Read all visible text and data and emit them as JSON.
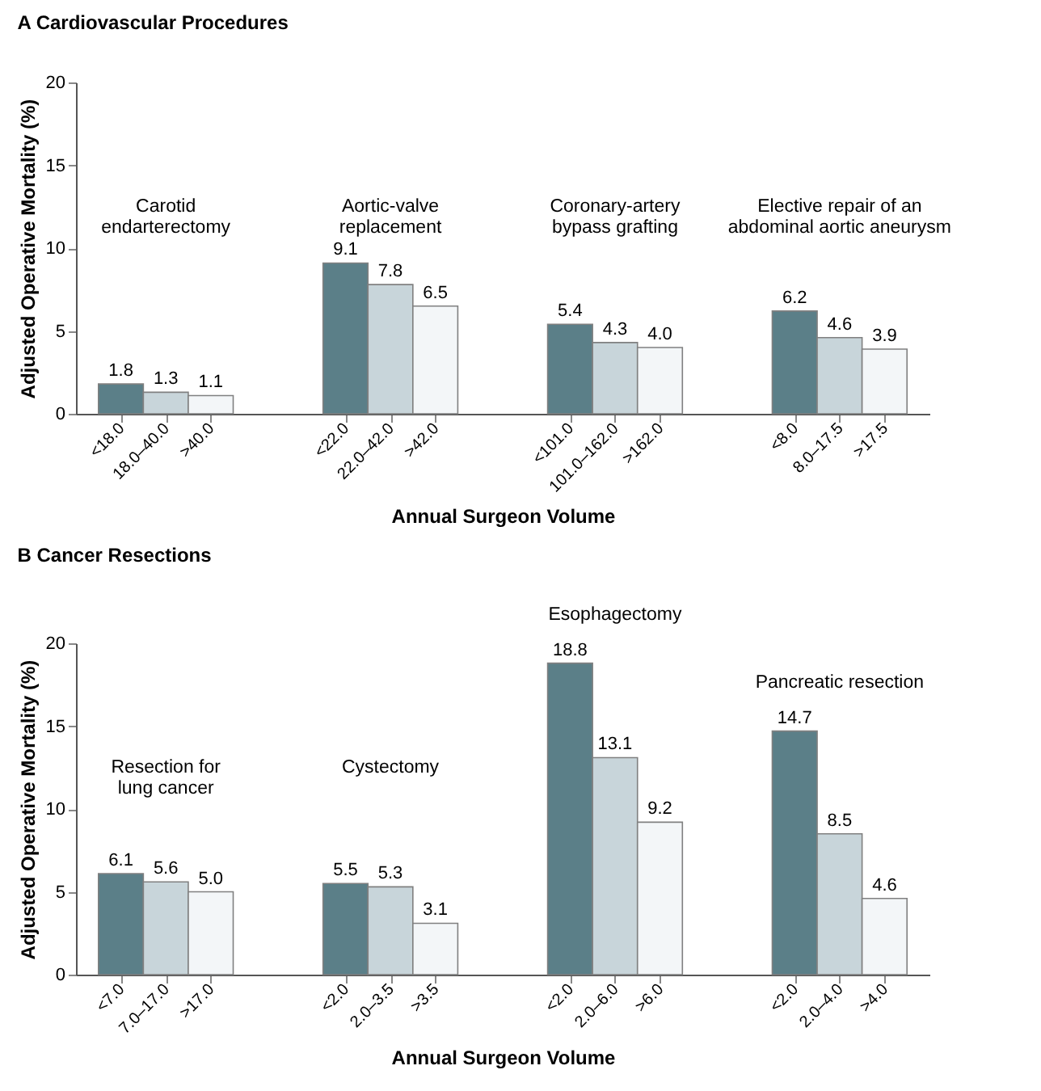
{
  "chart_data": [
    {
      "type": "bar",
      "title": "A Cardiovascular Procedures",
      "xlabel": "Annual Surgeon Volume",
      "ylabel": "Adjusted Operative Mortality (%)",
      "categories": [
        "<18.0",
        "18.0–40.0",
        ">40.0",
        "<22.0",
        "22.0–42.0",
        ">42.0",
        "<101.0",
        "101.0–162.0",
        ">162.0",
        "<8.0",
        "8.0–17.5",
        ">17.5"
      ],
      "values": [
        1.8,
        1.3,
        1.1,
        9.1,
        7.8,
        6.5,
        5.4,
        4.3,
        4.0,
        6.2,
        4.6,
        3.9
      ],
      "colors": [
        "#5b7f88",
        "#c8d5da",
        "#f3f6f8",
        "#5b7f88",
        "#c8d5da",
        "#f3f6f8",
        "#5b7f88",
        "#c8d5da",
        "#f3f6f8",
        "#5b7f88",
        "#c8d5da",
        "#f3f6f8"
      ],
      "annotations": [
        "Carotid\nendarterectomy",
        "Aortic-valve\nreplacement",
        "Coronary-artery\nbypass grafting",
        "Elective repair of an\nabdominal aortic aneurysm"
      ],
      "value_labels": [
        "1.8",
        "1.3",
        "1.1",
        "9.1",
        "7.8",
        "6.5",
        "5.4",
        "4.3",
        "4.0",
        "6.2",
        "4.6",
        "3.9"
      ],
      "ylim": [
        0,
        20
      ],
      "yticks": [
        0,
        5,
        10,
        15,
        20
      ],
      "grid": false
    },
    {
      "type": "bar",
      "title": "B Cancer Resections",
      "xlabel": "Annual Surgeon Volume",
      "ylabel": "Adjusted Operative Mortality (%)",
      "categories": [
        "<7.0",
        "7.0–17.0",
        ">17.0",
        "<2.0",
        "2.0–3.5",
        ">3.5",
        "<2.0",
        "2.0–6.0",
        ">6.0",
        "<2.0",
        "2.0–4.0",
        ">4.0"
      ],
      "values": [
        6.1,
        5.6,
        5.0,
        5.5,
        5.3,
        3.1,
        18.8,
        13.1,
        9.2,
        14.7,
        8.5,
        4.6
      ],
      "colors": [
        "#5b7f88",
        "#c8d5da",
        "#f3f6f8",
        "#5b7f88",
        "#c8d5da",
        "#f3f6f8",
        "#5b7f88",
        "#c8d5da",
        "#f3f6f8",
        "#5b7f88",
        "#c8d5da",
        "#f3f6f8"
      ],
      "annotations": [
        "Resection for\nlung cancer",
        "Cystectomy",
        "Esophagectomy",
        "Pancreatic resection"
      ],
      "value_labels": [
        "6.1",
        "5.6",
        "5.0",
        "5.5",
        "5.3",
        "3.1",
        "18.8",
        "13.1",
        "9.2",
        "14.7",
        "8.5",
        "4.6"
      ],
      "ylim": [
        0,
        20
      ],
      "yticks": [
        0,
        5,
        10,
        15,
        20
      ],
      "grid": false
    }
  ]
}
